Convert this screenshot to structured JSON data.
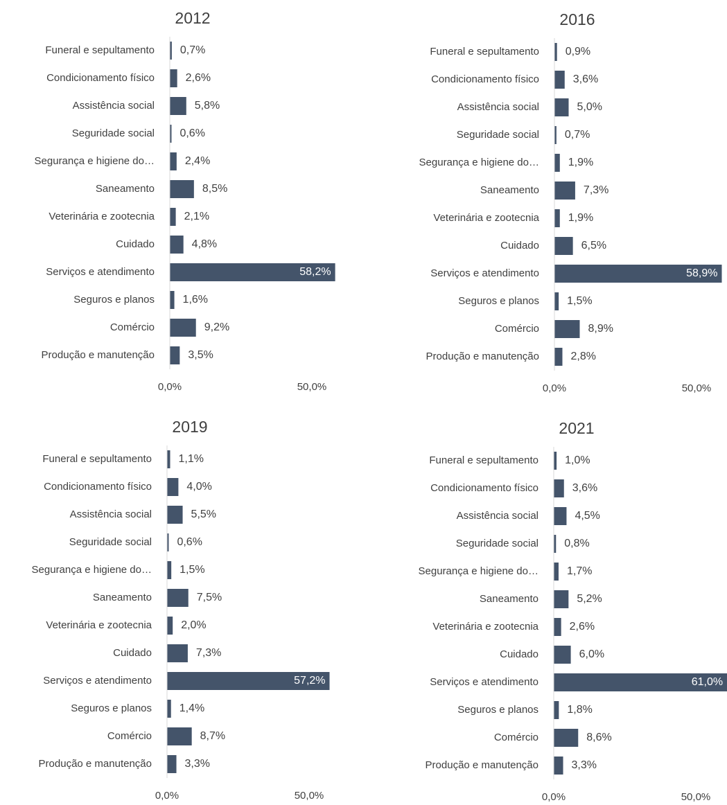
{
  "chart_data": [
    {
      "type": "bar",
      "orientation": "horizontal",
      "title": "2012",
      "color": "#44546a",
      "categories": [
        "Funeral e sepultamento",
        "Condicionamento físico",
        "Assistência social",
        "Seguridade social",
        "Segurança e higiene do…",
        "Saneamento",
        "Veterinária e zootecnia",
        "Cuidado",
        "Serviços e atendimento",
        "Seguros e planos",
        "Comércio",
        "Produção e manutenção"
      ],
      "values": [
        0.7,
        2.6,
        5.8,
        0.6,
        2.4,
        8.5,
        2.1,
        4.8,
        58.2,
        1.6,
        9.2,
        3.5
      ],
      "value_labels": [
        "0,7%",
        "2,6%",
        "5,8%",
        "0,6%",
        "2,4%",
        "8,5%",
        "2,1%",
        "4,8%",
        "58,2%",
        "1,6%",
        "9,2%",
        "3,5%"
      ],
      "xlim": [
        0,
        60
      ],
      "xticks": [
        {
          "value": 0,
          "label": "0,0%"
        },
        {
          "value": 50,
          "label": "50,0%"
        }
      ]
    },
    {
      "type": "bar",
      "orientation": "horizontal",
      "title": "2016",
      "color": "#44546a",
      "categories": [
        "Funeral e sepultamento",
        "Condicionamento físico",
        "Assistência social",
        "Seguridade social",
        "Segurança e higiene do…",
        "Saneamento",
        "Veterinária e zootecnia",
        "Cuidado",
        "Serviços e atendimento",
        "Seguros e planos",
        "Comércio",
        "Produção e manutenção"
      ],
      "values": [
        0.9,
        3.6,
        5.0,
        0.7,
        1.9,
        7.3,
        1.9,
        6.5,
        58.9,
        1.5,
        8.9,
        2.8
      ],
      "value_labels": [
        "0,9%",
        "3,6%",
        "5,0%",
        "0,7%",
        "1,9%",
        "7,3%",
        "1,9%",
        "6,5%",
        "58,9%",
        "1,5%",
        "8,9%",
        "2,8%"
      ],
      "xlim": [
        0,
        60
      ],
      "xticks": [
        {
          "value": 0,
          "label": "0,0%"
        },
        {
          "value": 50,
          "label": "50,0%"
        }
      ]
    },
    {
      "type": "bar",
      "orientation": "horizontal",
      "title": "2019",
      "color": "#44546a",
      "categories": [
        "Funeral e sepultamento",
        "Condicionamento físico",
        "Assistência social",
        "Seguridade social",
        "Segurança e higiene do…",
        "Saneamento",
        "Veterinária e zootecnia",
        "Cuidado",
        "Serviços e atendimento",
        "Seguros e planos",
        "Comércio",
        "Produção e manutenção"
      ],
      "values": [
        1.1,
        4.0,
        5.5,
        0.6,
        1.5,
        7.5,
        2.0,
        7.3,
        57.2,
        1.4,
        8.7,
        3.3
      ],
      "value_labels": [
        "1,1%",
        "4,0%",
        "5,5%",
        "0,6%",
        "1,5%",
        "7,5%",
        "2,0%",
        "7,3%",
        "57,2%",
        "1,4%",
        "8,7%",
        "3,3%"
      ],
      "xlim": [
        0,
        60
      ],
      "xticks": [
        {
          "value": 0,
          "label": "0,0%"
        },
        {
          "value": 50,
          "label": "50,0%"
        }
      ]
    },
    {
      "type": "bar",
      "orientation": "horizontal",
      "title": "2021",
      "color": "#44546a",
      "categories": [
        "Funeral e sepultamento",
        "Condicionamento físico",
        "Assistência social",
        "Seguridade social",
        "Segurança e higiene do…",
        "Saneamento",
        "Veterinária e zootecnia",
        "Cuidado",
        "Serviços e atendimento",
        "Seguros e planos",
        "Comércio",
        "Produção e manutenção"
      ],
      "values": [
        1.0,
        3.6,
        4.5,
        0.8,
        1.7,
        5.2,
        2.6,
        6.0,
        61.0,
        1.8,
        8.6,
        3.3
      ],
      "value_labels": [
        "1,0%",
        "3,6%",
        "4,5%",
        "0,8%",
        "1,7%",
        "5,2%",
        "2,6%",
        "6,0%",
        "61,0%",
        "1,8%",
        "8,6%",
        "3,3%"
      ],
      "xlim": [
        0,
        60
      ],
      "xticks": [
        {
          "value": 0,
          "label": "0,0%"
        },
        {
          "value": 50,
          "label": "50,0%"
        }
      ]
    }
  ]
}
